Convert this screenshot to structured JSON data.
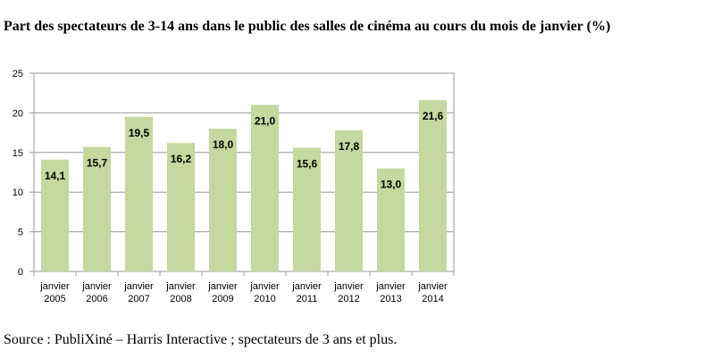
{
  "title": "Part des spectateurs de 3-14 ans dans le public des salles de cinéma au cours du mois de janvier (%)",
  "source": "Source : PubliXiné – Harris Interactive ; spectateurs de 3 ans et plus.",
  "chart_data": {
    "type": "bar",
    "title": "Part des spectateurs de 3-14 ans dans le public des salles de cinéma au cours du mois de janvier (%)",
    "categories": [
      [
        "janvier",
        "2005"
      ],
      [
        "janvier",
        "2006"
      ],
      [
        "janvier",
        "2007"
      ],
      [
        "janvier",
        "2008"
      ],
      [
        "janvier",
        "2009"
      ],
      [
        "janvier",
        "2010"
      ],
      [
        "janvier",
        "2011"
      ],
      [
        "janvier",
        "2012"
      ],
      [
        "janvier",
        "2013"
      ],
      [
        "janvier",
        "2014"
      ]
    ],
    "values": [
      14.1,
      15.7,
      19.5,
      16.2,
      18.0,
      21.0,
      15.6,
      17.8,
      13.0,
      21.6
    ],
    "data_labels": [
      "14,1",
      "15,7",
      "19,5",
      "16,2",
      "18,0",
      "21,0",
      "15,6",
      "17,8",
      "13,0",
      "21,6"
    ],
    "yticks": [
      "0",
      "5",
      "10",
      "15",
      "20",
      "25"
    ],
    "ylim": [
      0,
      25
    ],
    "xlabel": "",
    "ylabel": "",
    "grid": true,
    "bar_color": "#c4d89f",
    "grid_color": "#9a9a9a"
  }
}
